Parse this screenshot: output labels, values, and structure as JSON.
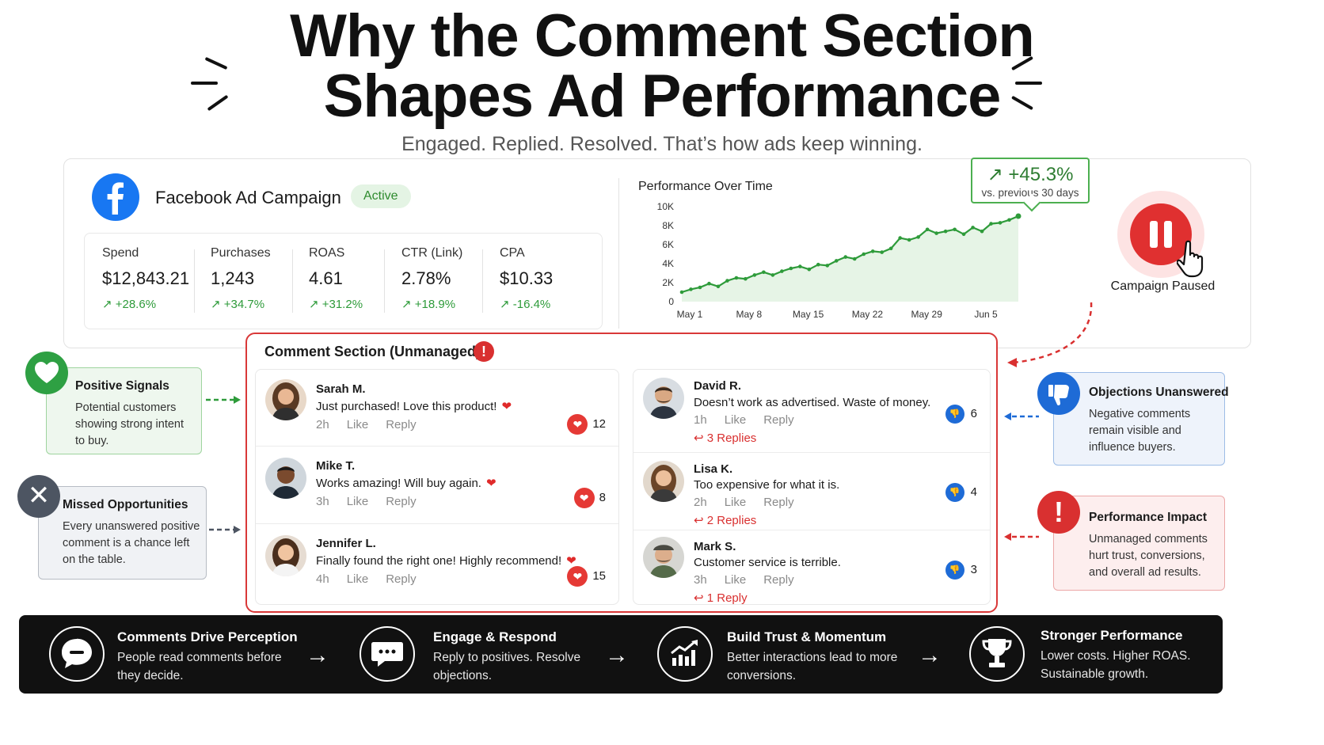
{
  "title": {
    "line1": "Why the Comment Section",
    "line2": "Shapes Ad Performance",
    "subtitle": "Engaged. Replied. Resolved. That’s how ads keep winning."
  },
  "campaign": {
    "name": "Facebook Ad Campaign",
    "status": "Active",
    "metrics": [
      {
        "label": "Spend",
        "value": "$12,843.21",
        "delta": "↗ +28.6%"
      },
      {
        "label": "Purchases",
        "value": "1,243",
        "delta": "↗ +34.7%"
      },
      {
        "label": "ROAS",
        "value": "4.61",
        "delta": "↗ +31.2%"
      },
      {
        "label": "CTR (Link)",
        "value": "2.78%",
        "delta": "↗ +18.9%"
      },
      {
        "label": "CPA",
        "value": "$10.33",
        "delta": "↗ -16.4%"
      }
    ],
    "gain": {
      "value": "↗ +45.3%",
      "sub": "vs. previous 30 days"
    },
    "paused_label": "Campaign Paused"
  },
  "chart_data": {
    "type": "area",
    "title": "Performance Over Time",
    "x_tick_labels": [
      "May 1",
      "May 8",
      "May 15",
      "May 22",
      "May 29",
      "Jun 5"
    ],
    "y_tick_labels": [
      "0",
      "2K",
      "4K",
      "6K",
      "8K",
      "10K"
    ],
    "ylim": [
      0,
      10000
    ],
    "x": [
      0,
      1,
      2,
      3,
      4,
      5,
      6,
      7,
      8,
      9,
      10,
      11,
      12,
      13,
      14,
      15,
      16,
      17,
      18,
      19,
      20,
      21,
      22,
      23,
      24,
      25,
      26,
      27,
      28,
      29,
      30,
      31,
      32,
      33,
      34,
      35,
      36,
      37
    ],
    "values": [
      1000,
      1300,
      1500,
      1900,
      1600,
      2200,
      2500,
      2400,
      2800,
      3100,
      2800,
      3200,
      3500,
      3700,
      3400,
      3900,
      3800,
      4300,
      4700,
      4500,
      5000,
      5300,
      5200,
      5600,
      6700,
      6500,
      6800,
      7600,
      7200,
      7400,
      7600,
      7100,
      7800,
      7400,
      8200,
      8300,
      8600,
      9000
    ],
    "color": "#2e9b3a",
    "grid": false
  },
  "comments_section": {
    "title": "Comment Section (Unmanaged)",
    "alert": "!",
    "positive": [
      {
        "name": "Sarah M.",
        "text": "Just purchased!  Love this product!",
        "time": "2h",
        "like": "Like",
        "reply": "Reply",
        "count": "12"
      },
      {
        "name": "Mike T.",
        "text": "Works amazing!  Will buy again.",
        "time": "3h",
        "like": "Like",
        "reply": "Reply",
        "count": "8"
      },
      {
        "name": "Jennifer L.",
        "text": "Finally found the right one!  Highly recommend!",
        "time": "4h",
        "like": "Like",
        "reply": "Reply",
        "count": "15"
      }
    ],
    "negative": [
      {
        "name": "David R.",
        "text": "Doesn’t work as advertised. Waste of money.",
        "time": "1h",
        "like": "Like",
        "reply": "Reply",
        "replies": "3 Replies",
        "count": "6"
      },
      {
        "name": "Lisa K.",
        "text": "Too expensive for what it is.",
        "time": "2h",
        "like": "Like",
        "reply": "Reply",
        "replies": "2 Replies",
        "count": "4"
      },
      {
        "name": "Mark S.",
        "text": "Customer service is terrible.",
        "time": "3h",
        "like": "Like",
        "reply": "Reply",
        "replies": "1 Reply",
        "count": "3"
      }
    ]
  },
  "callouts": {
    "positive": {
      "title": "Positive Signals",
      "body": "Potential customers showing strong intent to buy."
    },
    "missed": {
      "title": "Missed Opportunities",
      "body": "Every unanswered positive comment is a chance left on the table."
    },
    "objections": {
      "title": "Objections Unanswered",
      "body": "Negative comments remain visible and influence buyers."
    },
    "impact": {
      "title": "Performance Impact",
      "body": "Unmanaged comments hurt trust, conversions, and overall ad results."
    }
  },
  "steps": [
    {
      "title": "Comments Drive Perception",
      "body": "People read comments before they decide."
    },
    {
      "title": "Engage & Respond",
      "body": "Reply to positives. Resolve objections."
    },
    {
      "title": "Build Trust & Momentum",
      "body": "Better interactions lead to more conversions."
    },
    {
      "title": "Stronger Performance",
      "body": "Lower costs. Higher ROAS. Sustainable growth."
    }
  ],
  "colors": {
    "brand_blue": "#1877f2",
    "positive_green": "#2e9b3a",
    "alert_red": "#d93030",
    "dark_strip": "#111111"
  }
}
